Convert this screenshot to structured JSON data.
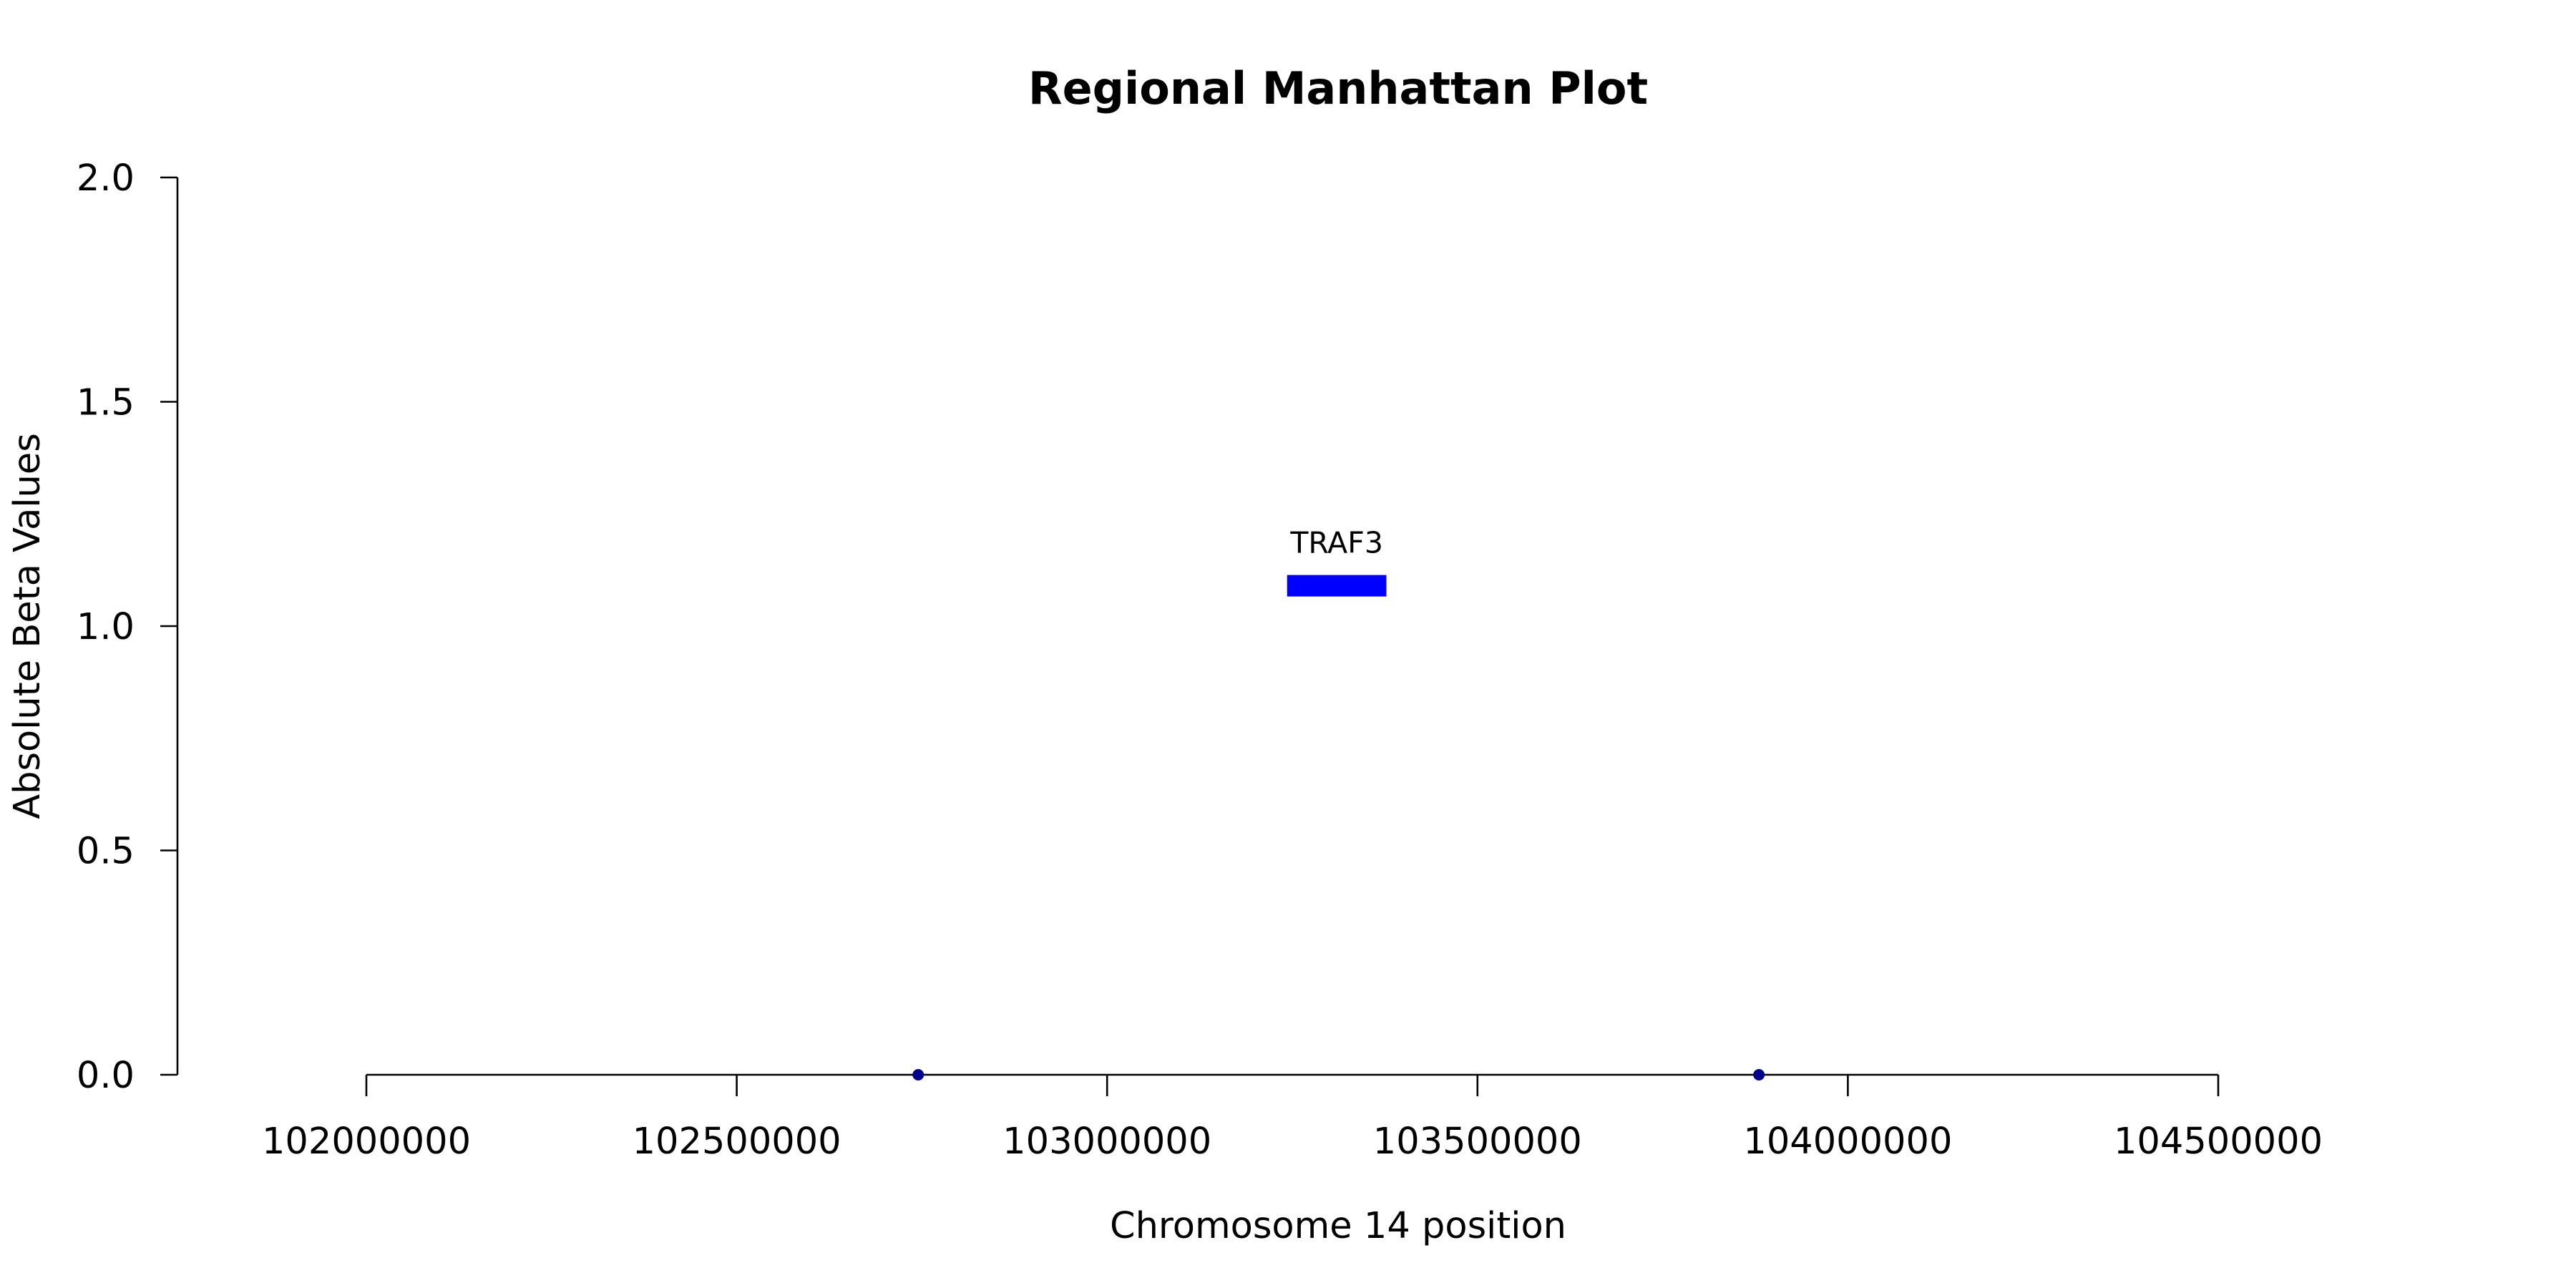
{
  "chart_data": {
    "type": "scatter",
    "title": "Regional Manhattan Plot",
    "xlabel": "Chromosome 14 position",
    "ylabel": "Absolute Beta Values",
    "xlim": [
      102000000,
      104500000
    ],
    "ylim": [
      0,
      2
    ],
    "x_ticks": [
      102000000,
      102500000,
      103000000,
      103500000,
      104000000,
      104500000
    ],
    "x_tick_labels": [
      "102000000",
      "102500000",
      "103000000",
      "103500000",
      "104000000",
      "104500000"
    ],
    "y_ticks": [
      0,
      0.5,
      1,
      1.5,
      2
    ],
    "y_tick_labels": [
      "0.0",
      "0.5",
      "1.0",
      "1.5",
      "2.0"
    ],
    "grid": false,
    "points": [
      {
        "x": 102745000,
        "y": 0.0
      },
      {
        "x": 103880000,
        "y": 0.0
      }
    ],
    "genes": [
      {
        "label": "TRAF3",
        "start": 103243000,
        "end": 103377000,
        "y": 1.09
      }
    ],
    "colors": {
      "points": "#00008b",
      "gene": "#0000ff",
      "axis": "#000000"
    }
  }
}
